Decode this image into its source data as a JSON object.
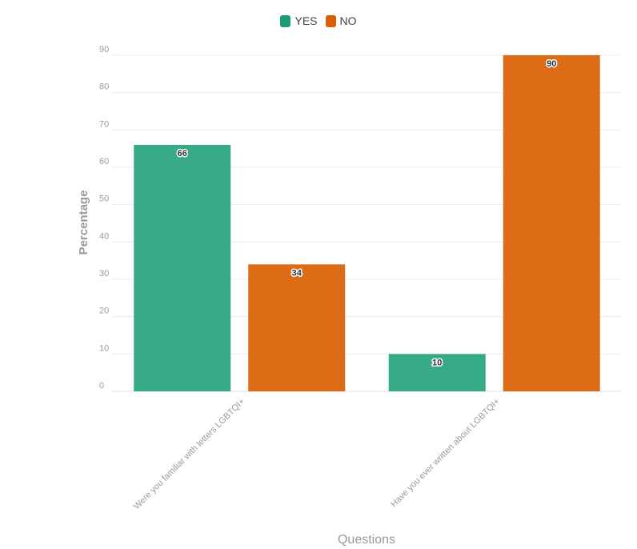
{
  "chart_data": {
    "type": "bar",
    "categories": [
      "Were you familiar with letters LGBTQI+",
      "Have you ever written about LGBTQI+"
    ],
    "series": [
      {
        "name": "YES",
        "color": "#1b9e77",
        "values": [
          66,
          10
        ]
      },
      {
        "name": "NO",
        "color": "#d95f02",
        "values": [
          34,
          90
        ]
      }
    ],
    "xlabel": "Questions",
    "ylabel": "Percentage",
    "ylim": [
      0,
      90
    ],
    "yticks": [
      0,
      10,
      20,
      30,
      40,
      50,
      60,
      70,
      80,
      90
    ],
    "grid": true,
    "legend_position": "top-center"
  }
}
